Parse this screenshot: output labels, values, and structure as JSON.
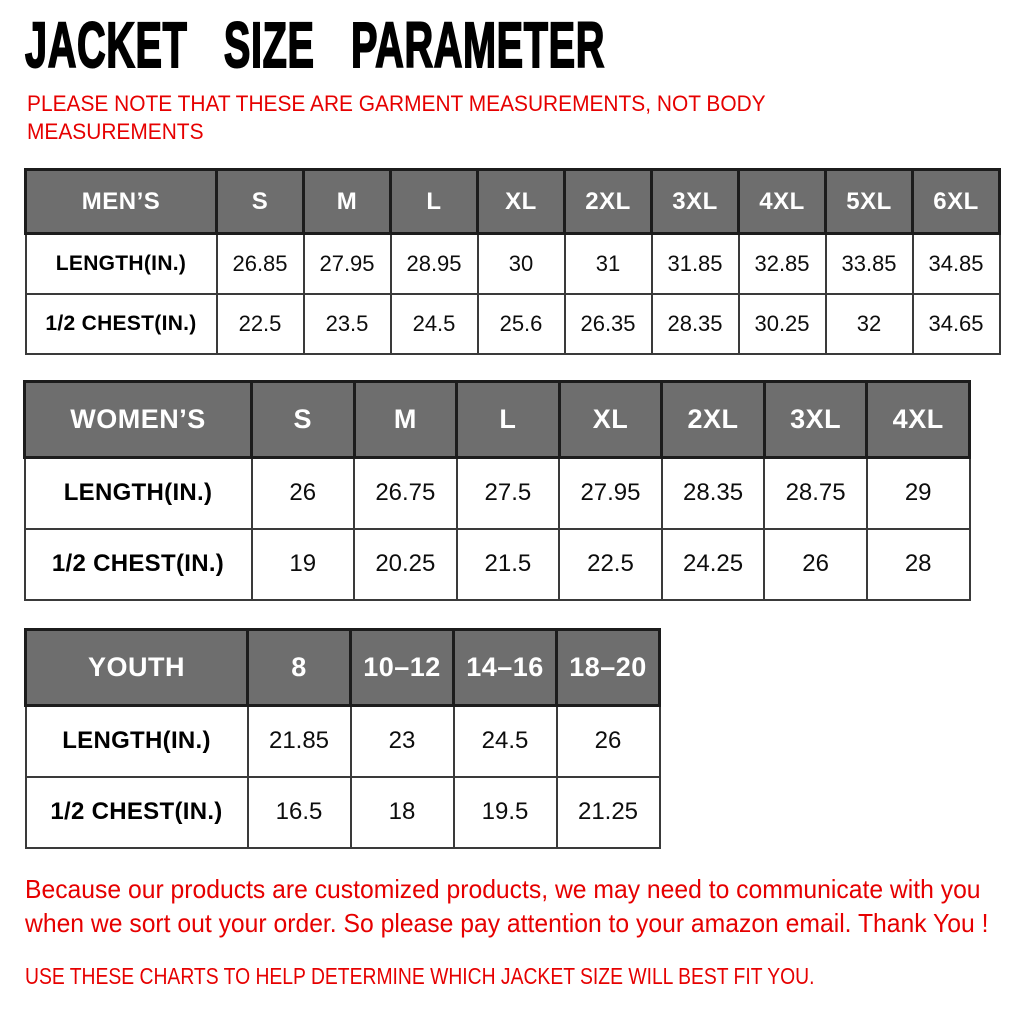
{
  "page": {
    "title": "JACKET SIZE PARAMETER",
    "note_lines": [
      "PLEASE NOTE THAT THESE ARE GARMENT MEASUREMENTS, NOT BODY",
      "MEASUREMENTS"
    ],
    "footer_lines": [
      "Because our products are customized products, we may need to communicate with you",
      "when we sort out your order. So please pay attention to your amazon email. Thank You !"
    ],
    "footer_caption": "USE THESE CHARTS TO HELP DETERMINE WHICH JACKET SIZE WILL BEST FIT YOU.",
    "colors": {
      "accent_red": "#e60000",
      "header_gray": "#6e6e6e",
      "text_black": "#111111"
    }
  },
  "tables": [
    {
      "id": "mens",
      "header": [
        "MEN’S",
        "S",
        "M",
        "L",
        "XL",
        "2XL",
        "3XL",
        "4XL",
        "5XL",
        "6XL"
      ],
      "rows": [
        {
          "label": "LENGTH(IN.)",
          "values": [
            "26.85",
            "27.95",
            "28.95",
            "30",
            "31",
            "31.85",
            "32.85",
            "33.85",
            "34.85"
          ]
        },
        {
          "label": "1/2 CHEST(IN.)",
          "values": [
            "22.5",
            "23.5",
            "24.5",
            "25.6",
            "26.35",
            "28.35",
            "30.25",
            "32",
            "34.65"
          ]
        }
      ]
    },
    {
      "id": "womens",
      "header": [
        "WOMEN’S",
        "S",
        "M",
        "L",
        "XL",
        "2XL",
        "3XL",
        "4XL"
      ],
      "rows": [
        {
          "label": "LENGTH(IN.)",
          "values": [
            "26",
            "26.75",
            "27.5",
            "27.95",
            "28.35",
            "28.75",
            "29"
          ]
        },
        {
          "label": "1/2 CHEST(IN.)",
          "values": [
            "19",
            "20.25",
            "21.5",
            "22.5",
            "24.25",
            "26",
            "28"
          ]
        }
      ]
    },
    {
      "id": "youth",
      "header": [
        "YOUTH",
        "8",
        "10–12",
        "14–16",
        "18–20"
      ],
      "rows": [
        {
          "label": "LENGTH(IN.)",
          "values": [
            "21.85",
            "23",
            "24.5",
            "26"
          ]
        },
        {
          "label": "1/2 CHEST(IN.)",
          "values": [
            "16.5",
            "18",
            "19.5",
            "21.25"
          ]
        }
      ]
    }
  ]
}
